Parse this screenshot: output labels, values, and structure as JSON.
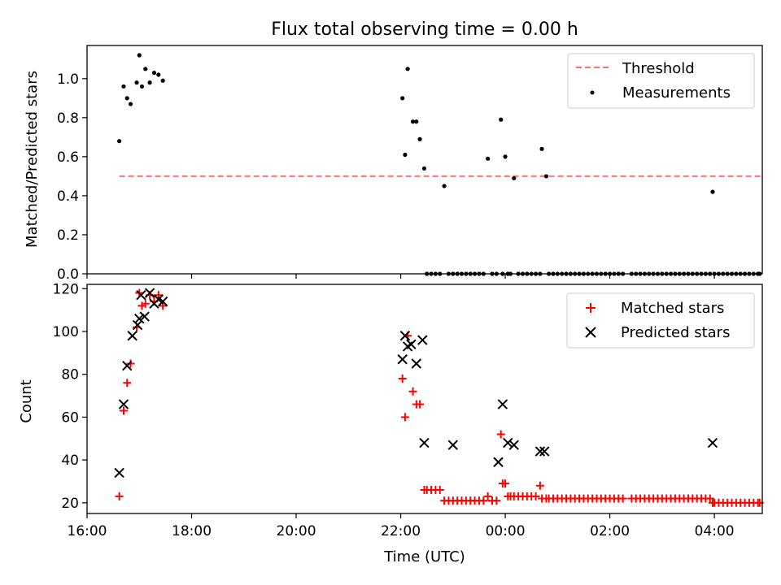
{
  "chart_data": [
    {
      "type": "scatter",
      "title": "Flux total observing time = 0.00 h",
      "ylabel": "Matched/Predicted stars",
      "xlabel": "",
      "xlim": [
        "16:00",
        "04:55"
      ],
      "ylim": [
        0.0,
        1.17
      ],
      "yticks": [
        0.0,
        0.2,
        0.4,
        0.6,
        0.8,
        1.0
      ],
      "ytick_labels": [
        "0.0",
        "0.2",
        "0.4",
        "0.6",
        "0.8",
        "1.0"
      ],
      "xticks": [
        "16:00",
        "18:00",
        "20:00",
        "22:00",
        "00:00",
        "02:00",
        "04:00"
      ],
      "legend": [
        "Threshold",
        "Measurements"
      ],
      "legend_position": "top-right",
      "threshold": {
        "name": "Threshold",
        "value": 0.5,
        "x_start": "16:37",
        "x_end": "04:53",
        "color": "#ff7070"
      },
      "measurements": {
        "name": "Measurements",
        "color": "#000000",
        "x": [
          "16:37",
          "16:42",
          "16:46",
          "16:50",
          "16:57",
          "17:00",
          "17:03",
          "17:07",
          "17:12",
          "17:17",
          "17:22",
          "17:27",
          "22:02",
          "22:05",
          "22:08",
          "22:14",
          "22:18",
          "22:22",
          "22:27",
          "22:30",
          "22:35",
          "22:40",
          "22:45",
          "22:50",
          "22:55",
          "23:00",
          "23:05",
          "23:10",
          "23:15",
          "23:20",
          "23:25",
          "23:30",
          "23:35",
          "23:40",
          "23:45",
          "23:50",
          "23:55",
          "23:57",
          "00:00",
          "00:03",
          "00:06",
          "00:10",
          "00:15",
          "00:20",
          "00:25",
          "00:30",
          "00:35",
          "00:40",
          "00:42",
          "00:47",
          "00:50",
          "00:55",
          "01:00",
          "01:05",
          "01:10",
          "01:15",
          "01:20",
          "01:25",
          "01:30",
          "01:35",
          "01:40",
          "01:45",
          "01:50",
          "01:55",
          "02:00",
          "02:05",
          "02:10",
          "02:15",
          "02:25",
          "02:30",
          "02:35",
          "02:40",
          "02:45",
          "02:50",
          "02:55",
          "03:00",
          "03:05",
          "03:10",
          "03:15",
          "03:20",
          "03:25",
          "03:30",
          "03:35",
          "03:40",
          "03:45",
          "03:50",
          "03:55",
          "03:58",
          "04:00",
          "04:05",
          "04:10",
          "04:15",
          "04:20",
          "04:25",
          "04:30",
          "04:35",
          "04:40",
          "04:45",
          "04:50",
          "04:52"
        ],
        "y": [
          0.68,
          0.96,
          0.9,
          0.87,
          0.98,
          1.12,
          0.96,
          1.05,
          0.98,
          1.03,
          1.02,
          0.99,
          0.9,
          0.61,
          1.05,
          0.78,
          0.78,
          0.69,
          0.54,
          0.0,
          0.0,
          0.0,
          0.0,
          0.45,
          0.0,
          0.0,
          0.0,
          0.0,
          0.0,
          0.0,
          0.0,
          0.0,
          0.0,
          0.59,
          0.0,
          0.0,
          0.79,
          0.0,
          0.6,
          0.0,
          0.0,
          0.49,
          0.0,
          0.0,
          0.0,
          0.0,
          0.0,
          0.0,
          0.64,
          0.5,
          0.0,
          0.0,
          0.0,
          0.0,
          0.0,
          0.0,
          0.0,
          0.0,
          0.0,
          0.0,
          0.0,
          0.0,
          0.0,
          0.0,
          0.0,
          0.0,
          0.0,
          0.0,
          0.0,
          0.0,
          0.0,
          0.0,
          0.0,
          0.0,
          0.0,
          0.0,
          0.0,
          0.0,
          0.0,
          0.0,
          0.0,
          0.0,
          0.0,
          0.0,
          0.0,
          0.0,
          0.0,
          0.42,
          0.0,
          0.0,
          0.0,
          0.0,
          0.0,
          0.0,
          0.0,
          0.0,
          0.0,
          0.0,
          0.0,
          0.0
        ]
      }
    },
    {
      "type": "scatter",
      "title": "",
      "ylabel": "Count",
      "xlabel": "Time (UTC)",
      "xlim": [
        "16:00",
        "04:55"
      ],
      "ylim": [
        15,
        122
      ],
      "yticks": [
        20,
        40,
        60,
        80,
        100,
        120
      ],
      "ytick_labels": [
        "20",
        "40",
        "60",
        "80",
        "100",
        "120"
      ],
      "xticks": [
        "16:00",
        "18:00",
        "20:00",
        "22:00",
        "00:00",
        "02:00",
        "04:00"
      ],
      "xtick_labels": [
        "16:00",
        "18:00",
        "20:00",
        "22:00",
        "00:00",
        "02:00",
        "04:00"
      ],
      "legend": [
        "Matched stars",
        "Predicted stars"
      ],
      "legend_position": "top-right",
      "series": [
        {
          "name": "Matched stars",
          "marker": "+",
          "color": "#ff0000",
          "x": [
            "16:37",
            "16:42",
            "16:46",
            "16:50",
            "16:57",
            "17:00",
            "17:03",
            "17:07",
            "17:12",
            "17:17",
            "17:22",
            "17:27",
            "22:02",
            "22:05",
            "22:08",
            "22:14",
            "22:18",
            "22:22",
            "22:27",
            "22:30",
            "22:35",
            "22:40",
            "22:45",
            "22:50",
            "22:55",
            "23:00",
            "23:05",
            "23:10",
            "23:15",
            "23:20",
            "23:25",
            "23:30",
            "23:35",
            "23:40",
            "23:45",
            "23:50",
            "23:55",
            "23:57",
            "00:00",
            "00:03",
            "00:06",
            "00:10",
            "00:15",
            "00:20",
            "00:25",
            "00:30",
            "00:35",
            "00:40",
            "00:42",
            "00:47",
            "00:50",
            "00:55",
            "01:00",
            "01:05",
            "01:10",
            "01:15",
            "01:20",
            "01:25",
            "01:30",
            "01:35",
            "01:40",
            "01:45",
            "01:50",
            "01:55",
            "02:00",
            "02:05",
            "02:10",
            "02:15",
            "02:25",
            "02:30",
            "02:35",
            "02:40",
            "02:45",
            "02:50",
            "02:55",
            "03:00",
            "03:05",
            "03:10",
            "03:15",
            "03:20",
            "03:25",
            "03:30",
            "03:35",
            "03:40",
            "03:45",
            "03:50",
            "03:55",
            "03:58",
            "04:00",
            "04:05",
            "04:10",
            "04:15",
            "04:20",
            "04:25",
            "04:30",
            "04:35",
            "04:40",
            "04:45",
            "04:50",
            "04:52"
          ],
          "y": [
            23,
            63,
            76,
            85,
            102,
            118,
            112,
            113,
            117,
            114,
            117,
            112,
            78,
            60,
            98,
            72,
            66,
            66,
            26,
            26,
            26,
            26,
            26,
            21,
            21,
            21,
            21,
            21,
            21,
            21,
            21,
            21,
            21,
            23,
            21,
            21,
            52,
            29,
            29,
            23,
            23,
            23,
            23,
            23,
            23,
            23,
            23,
            28,
            22,
            22,
            22,
            22,
            22,
            22,
            22,
            22,
            22,
            22,
            22,
            22,
            22,
            22,
            22,
            22,
            22,
            22,
            22,
            22,
            22,
            22,
            22,
            22,
            22,
            22,
            22,
            22,
            22,
            22,
            22,
            22,
            22,
            22,
            22,
            22,
            22,
            22,
            22,
            20,
            20,
            20,
            20,
            20,
            20,
            20,
            20,
            20,
            20,
            20,
            20,
            20
          ]
        },
        {
          "name": "Predicted stars",
          "marker": "x",
          "color": "#000000",
          "x": [
            "16:37",
            "16:42",
            "16:46",
            "16:52",
            "16:58",
            "17:00",
            "17:02",
            "17:06",
            "17:12",
            "17:17",
            "17:22",
            "17:27",
            "22:02",
            "22:05",
            "22:08",
            "22:12",
            "22:18",
            "22:25",
            "22:27",
            "23:00",
            "23:52",
            "23:57",
            "00:03",
            "00:10",
            "00:40",
            "00:45",
            "03:58"
          ],
          "y": [
            34,
            66,
            84,
            98,
            103,
            106,
            117,
            107,
            118,
            113,
            115,
            114,
            87,
            98,
            93,
            94,
            85,
            96,
            48,
            47,
            39,
            66,
            48,
            47,
            44,
            44,
            48
          ]
        }
      ]
    }
  ]
}
